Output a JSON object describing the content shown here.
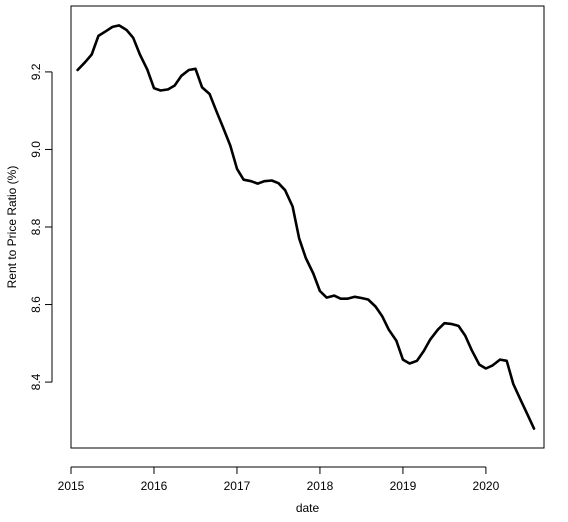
{
  "chart_data": {
    "type": "line",
    "title": "",
    "xlabel": "date",
    "ylabel": "Rent to Price Ratio (%)",
    "xlim": [
      2015.0,
      2020.7
    ],
    "ylim": [
      8.23,
      9.37
    ],
    "x_ticks": [
      2015,
      2016,
      2017,
      2018,
      2019,
      2020
    ],
    "x_tick_labels": [
      "2015",
      "2016",
      "2017",
      "2018",
      "2019",
      "2020"
    ],
    "y_ticks": [
      8.4,
      8.6,
      8.8,
      9.0,
      9.2
    ],
    "y_tick_labels": [
      "8.4",
      "8.6",
      "8.8",
      "9.0",
      "9.2"
    ],
    "grid": false,
    "legend": "none",
    "series": [
      {
        "color": "#000000",
        "x": [
          2015.08,
          2015.17,
          2015.25,
          2015.33,
          2015.42,
          2015.5,
          2015.58,
          2015.67,
          2015.75,
          2015.83,
          2015.92,
          2016.0,
          2016.08,
          2016.17,
          2016.25,
          2016.33,
          2016.42,
          2016.5,
          2016.58,
          2016.67,
          2016.75,
          2016.83,
          2016.92,
          2017.0,
          2017.08,
          2017.17,
          2017.25,
          2017.33,
          2017.42,
          2017.5,
          2017.58,
          2017.67,
          2017.75,
          2017.83,
          2017.92,
          2018.0,
          2018.08,
          2018.17,
          2018.25,
          2018.33,
          2018.42,
          2018.5,
          2018.58,
          2018.67,
          2018.75,
          2018.83,
          2018.92,
          2019.0,
          2019.08,
          2019.17,
          2019.25,
          2019.33,
          2019.42,
          2019.5,
          2019.58,
          2019.67,
          2019.75,
          2019.83,
          2019.92,
          2020.0,
          2020.08,
          2020.17,
          2020.25,
          2020.33,
          2020.42,
          2020.5,
          2020.58
        ],
        "y": [
          9.205,
          9.225,
          9.245,
          9.293,
          9.305,
          9.316,
          9.32,
          9.308,
          9.288,
          9.245,
          9.206,
          9.158,
          9.152,
          9.155,
          9.165,
          9.19,
          9.205,
          9.208,
          9.16,
          9.143,
          9.1,
          9.058,
          9.01,
          8.95,
          8.922,
          8.918,
          8.912,
          8.918,
          8.92,
          8.913,
          8.895,
          8.853,
          8.77,
          8.72,
          8.68,
          8.635,
          8.618,
          8.623,
          8.615,
          8.615,
          8.62,
          8.617,
          8.613,
          8.595,
          8.57,
          8.535,
          8.507,
          8.458,
          8.448,
          8.455,
          8.48,
          8.51,
          8.535,
          8.552,
          8.55,
          8.545,
          8.52,
          8.482,
          8.445,
          8.435,
          8.443,
          8.458,
          8.455,
          8.395,
          8.353,
          8.317,
          8.28
        ]
      }
    ]
  }
}
